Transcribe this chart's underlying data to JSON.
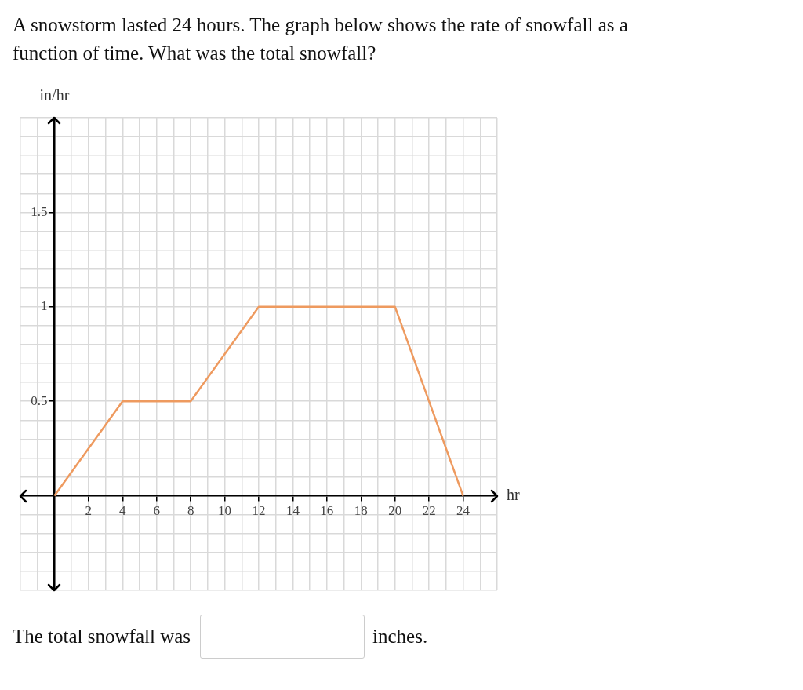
{
  "chart_data": {
    "type": "line",
    "title": "A snowstorm lasted 24 hours. The graph below shows the rate of snowfall as a function of time. What was the total snowfall?",
    "xlabel": "hr",
    "ylabel": "in/hr",
    "annotations": [
      "The total snowfall was",
      "inches."
    ],
    "x": [
      0,
      4,
      8,
      12,
      20,
      24
    ],
    "series": [
      {
        "color": "#ee9a5f",
        "values": [
          0,
          0.5,
          0.5,
          1,
          1,
          0
        ]
      }
    ],
    "xlim": [
      -2,
      26
    ],
    "xticks": [
      {
        "value": -2,
        "label": null
      },
      {
        "value": -1,
        "label": null
      },
      {
        "value": 0,
        "label": null
      },
      {
        "value": 1,
        "label": null
      },
      2,
      {
        "value": 3,
        "label": null
      },
      4,
      {
        "value": 5,
        "label": null
      },
      6,
      {
        "value": 7,
        "label": null
      },
      8,
      {
        "value": 9,
        "label": null
      },
      10,
      {
        "value": 11,
        "label": null
      },
      12,
      {
        "value": 13,
        "label": null
      },
      14,
      {
        "value": 15,
        "label": null
      },
      16,
      {
        "value": 17,
        "label": null
      },
      18,
      {
        "value": 19,
        "label": null
      },
      20,
      {
        "value": 21,
        "label": null
      },
      22,
      {
        "value": 23,
        "label": null
      },
      24,
      {
        "value": 25,
        "label": null
      },
      {
        "value": 26,
        "label": null
      }
    ],
    "ylim": [
      -0.5,
      2
    ],
    "yticks": [
      {
        "value": -0.5,
        "label": null
      },
      {
        "value": -0.4,
        "label": null
      },
      {
        "value": -0.3,
        "label": null
      },
      {
        "value": -0.2,
        "label": null
      },
      {
        "value": -0.1,
        "label": null
      },
      {
        "value": 0,
        "label": null
      },
      {
        "value": 0.1,
        "label": null
      },
      {
        "value": 0.2,
        "label": null
      },
      {
        "value": 0.3,
        "label": null
      },
      {
        "value": 0.4,
        "label": null
      },
      0.5,
      {
        "value": 0.6,
        "label": null
      },
      {
        "value": 0.7,
        "label": null
      },
      {
        "value": 0.8,
        "label": null
      },
      {
        "value": 0.9,
        "label": null
      },
      1,
      {
        "value": 1.1,
        "label": null
      },
      {
        "value": 1.2,
        "label": null
      },
      {
        "value": 1.3,
        "label": null
      },
      {
        "value": 1.4,
        "label": null
      },
      1.5,
      {
        "value": 1.6,
        "label": null
      },
      {
        "value": 1.7,
        "label": null
      },
      {
        "value": 1.8,
        "label": null
      },
      {
        "value": 1.9,
        "label": null
      },
      {
        "value": 2,
        "label": null
      }
    ],
    "grid": true,
    "legend": false,
    "marker": "none",
    "line_style": "solid"
  }
}
